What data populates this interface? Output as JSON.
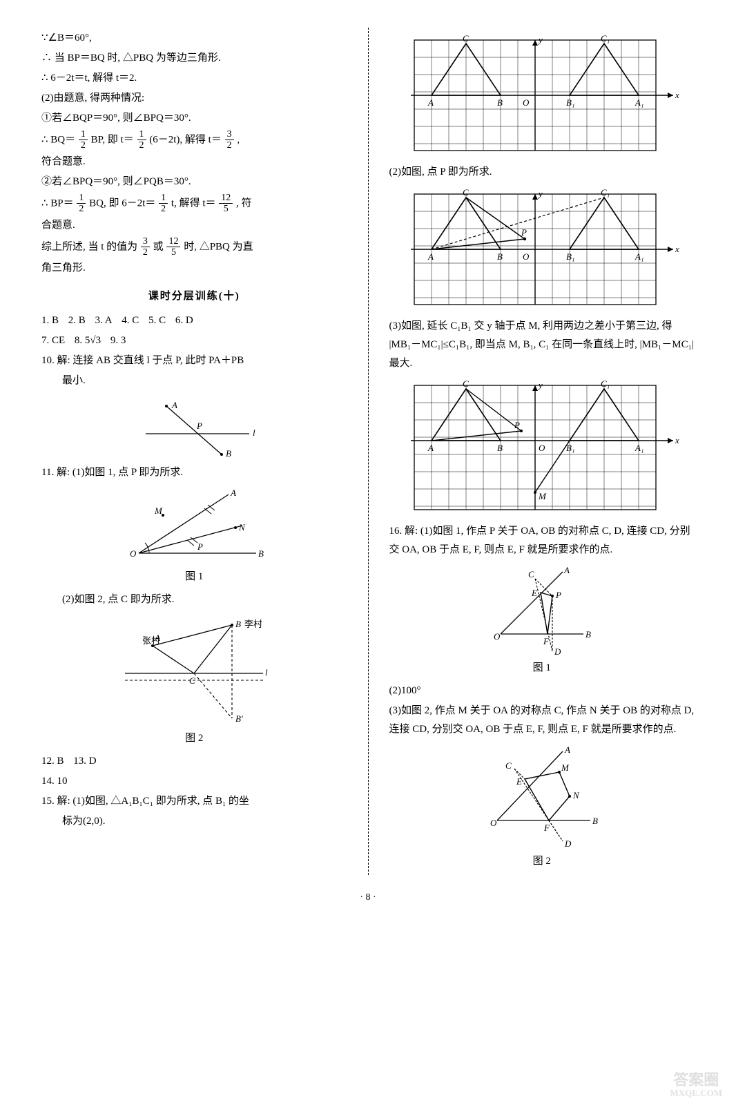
{
  "left": {
    "p1": "∵∠B＝60°,",
    "p2": "∴ 当 BP＝BQ 时, △PBQ 为等边三角形.",
    "p3": "∴ 6－2t＝t, 解得 t＝2.",
    "p4": "(2)由题意, 得两种情况:",
    "p5": "①若∠BQP＝90°, 则∠BPQ＝30°.",
    "p6a": "∴ BQ＝",
    "p6b": "BP, 即 t＝",
    "p6c": "(6－2t), 解得 t＝",
    "p6d": ",",
    "p7": "符合题意.",
    "p8": "②若∠BPQ＝90°, 则∠PQB＝30°.",
    "p9a": "∴ BP＝",
    "p9b": "BQ, 即 6－2t＝",
    "p9c": "t, 解得 t＝",
    "p9d": ", 符",
    "p10": "合题意.",
    "p11a": "综上所述, 当 t 的值为",
    "p11b": "或",
    "p11c": "时, △PBQ 为直",
    "p12": "角三角形.",
    "heading": "课时分层训练(十)",
    "row1": {
      "a1": "1. B",
      "a2": "2. B",
      "a3": "3. A",
      "a4": "4. C",
      "a5": "5. C",
      "a6": "6. D"
    },
    "row2": {
      "a7": "7. CE",
      "a8": "8. 5√3",
      "a9": "9. 3"
    },
    "q10": "10. 解: 连接 AB 交直线 l 于点 P, 此时 PA＋PB",
    "q10b": "最小.",
    "q11": "11. 解: (1)如图 1, 点 P 即为所求.",
    "q11b": "(2)如图 2, 点 C 即为所求.",
    "fig1cap": "图 1",
    "fig2cap": "图 2",
    "row3": {
      "a12": "12. B",
      "a13": "13. D"
    },
    "q14": "14. 10",
    "q15": "15. 解: (1)如图, △A₁B₁C₁ 即为所求, 点 B₁ 的坐",
    "q15b": "标为(2,0)."
  },
  "right": {
    "p1": "(2)如图, 点 P 即为所求.",
    "p2": "(3)如图, 延长 C₁B₁ 交 y 轴于点 M, 利用两边之差小于第三边, 得 |MB₁－MC₁|≤C₁B₁, 即当点 M, B₁, C₁ 在同一条直线上时, |MB₁－MC₁| 最大.",
    "q16": "16. 解: (1)如图 1, 作点 P 关于 OA, OB 的对称点 C, D, 连接 CD, 分别交 OA, OB 于点 E, F, 则点 E, F 就是所要求作的点.",
    "fig1cap": "图 1",
    "p3": "(2)100°",
    "p4": "(3)如图 2, 作点 M 关于 OA 的对称点 C, 作点 N 关于 OB 的对称点 D, 连接 CD, 分别交 OA, OB 于点 E, F, 则点 E, F 就是所要求作的点.",
    "fig2cap": "图 2"
  },
  "fracs": {
    "half": {
      "n": "1",
      "d": "2"
    },
    "threehalf": {
      "n": "3",
      "d": "2"
    },
    "twelvefifth": {
      "n": "12",
      "d": "5"
    }
  },
  "pagenum": "· 8 ·",
  "watermark": {
    "t1": "答案圈",
    "t2": "MXQE.COM"
  },
  "svg": {
    "grid": {
      "stroke": "#000",
      "sw": "0.7",
      "fill": "none"
    },
    "line": {
      "stroke": "#000",
      "sw": "1.3"
    },
    "dash": {
      "stroke": "#000",
      "sw": "1.1",
      "da": "4,3"
    },
    "font": "italic 13px serif",
    "fontN": "13px serif"
  },
  "fig10": {
    "A": "A",
    "P": "P",
    "B": "B",
    "l": "l"
  },
  "fig11a": {
    "O": "O",
    "A": "A",
    "B": "B",
    "M": "M",
    "N": "N",
    "P": "P"
  },
  "fig11b": {
    "A": "A",
    "B": "B",
    "Bp": "B′",
    "C": "C",
    "zh": "张村",
    "li": "李村",
    "l": "l"
  },
  "grid1": {
    "A": "A",
    "B": "B",
    "C": "C",
    "A1": "A₁",
    "B1": "B₁",
    "C1": "C₁",
    "O": "O",
    "x": "x",
    "y": "y"
  },
  "grid2": {
    "A": "A",
    "B": "B",
    "C": "C",
    "A1": "A₁",
    "B1": "B₁",
    "C1": "C₁",
    "O": "O",
    "P": "P",
    "x": "x",
    "y": "y"
  },
  "grid3": {
    "A": "A",
    "B": "B",
    "C": "C",
    "A1": "A₁",
    "B1": "B₁",
    "C1": "C₁",
    "O": "O",
    "P": "P",
    "M": "M",
    "x": "x",
    "y": "y"
  },
  "fig16a": {
    "O": "O",
    "A": "A",
    "B": "B",
    "C": "C",
    "D": "D",
    "E": "E",
    "F": "F",
    "P": "P"
  },
  "fig16b": {
    "O": "O",
    "A": "A",
    "B": "B",
    "C": "C",
    "D": "D",
    "E": "E",
    "F": "F",
    "M": "M",
    "N": "N"
  }
}
